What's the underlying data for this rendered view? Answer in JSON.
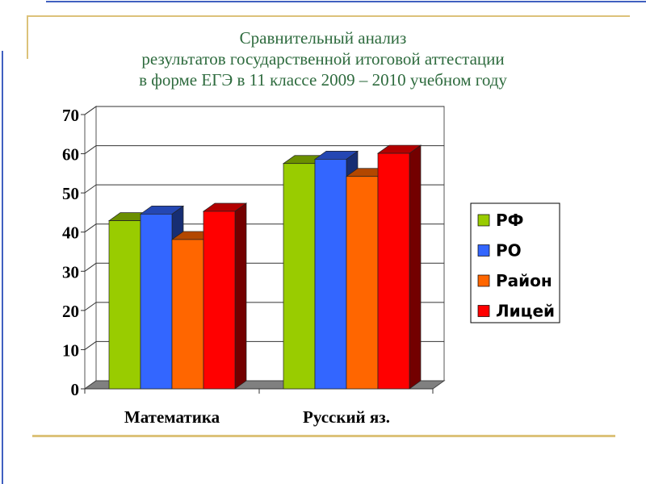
{
  "title_lines": [
    "Сравнительный анализ",
    "результатов государственной итоговой аттестации",
    "в форме ЕГЭ в 11 классе 2009 – 2010 учебном году"
  ],
  "colors": {
    "title": "#2e6b3e",
    "accent_gold": "#dcc27a",
    "accent_blue": "#4060c0"
  },
  "chart_data": {
    "type": "bar",
    "style": "3d-clustered",
    "title": "",
    "categories": [
      "Математика",
      "Русский яз."
    ],
    "series": [
      {
        "name": "РФ",
        "color": "#99cc00",
        "values": [
          42.9,
          57.5
        ]
      },
      {
        "name": "РО",
        "color": "#3366ff",
        "values": [
          44.6,
          58.6
        ]
      },
      {
        "name": "Район",
        "color": "#ff6600",
        "values": [
          38.1,
          54.2
        ]
      },
      {
        "name": "Лицей",
        "color": "#ff0000",
        "values": [
          45.3,
          60.1
        ]
      }
    ],
    "ylim": [
      0,
      70
    ],
    "yticks": [
      "0",
      "10",
      "20",
      "30",
      "40",
      "50",
      "60",
      "70"
    ],
    "grid": true,
    "legend": "right"
  }
}
